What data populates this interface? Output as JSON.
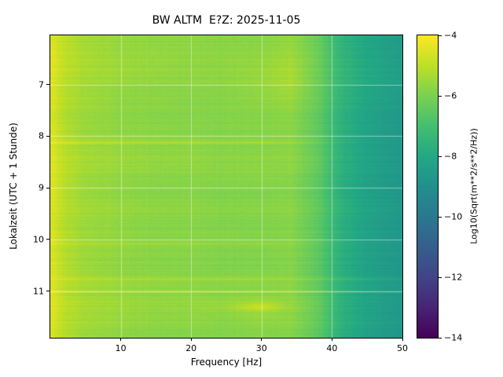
{
  "figure": {
    "title": "BW ALTM  E?Z: 2025-11-05",
    "xlabel": "Frequency [Hz]",
    "ylabel": "Lokalzeit (UTC + 1 Stunde)",
    "colorbar_label": "Log10(Sqrt(m**2/s**2/Hz))"
  },
  "chart_data": {
    "type": "heatmap",
    "title": "BW ALTM  E?Z: 2025-11-05",
    "xlabel": "Frequency [Hz]",
    "ylabel": "Lokalzeit (UTC + 1 Stunde)",
    "x_range": [
      0,
      50
    ],
    "x_ticks": [
      10,
      20,
      30,
      40,
      50
    ],
    "y_range": [
      6.05,
      11.9
    ],
    "y_ticks": [
      7,
      8,
      9,
      10,
      11
    ],
    "grid": true,
    "colorbar": {
      "label": "Log10(Sqrt(m**2/s**2/Hz))",
      "ticks": [
        -4,
        -6,
        -8,
        -10,
        -12,
        -14
      ],
      "vmin": -14,
      "vmax": -4,
      "colormap": "viridis"
    },
    "freq_bins": [
      0.5,
      2,
      5,
      10,
      15,
      20,
      25,
      30,
      34,
      38,
      41,
      45,
      50
    ],
    "time_bins": [
      6.05,
      6.4,
      6.7,
      7.0,
      7.3,
      7.6,
      7.9,
      8.08,
      8.13,
      8.18,
      8.5,
      8.8,
      9.1,
      9.4,
      9.7,
      10.0,
      10.05,
      10.09,
      10.13,
      10.5,
      10.72,
      10.77,
      10.82,
      10.97,
      11.01,
      11.05,
      11.2,
      11.3,
      11.4,
      11.6,
      11.9
    ],
    "values": [
      [
        -4.6,
        -5.0,
        -5.4,
        -5.6,
        -5.7,
        -5.7,
        -5.8,
        -5.8,
        -5.6,
        -6.3,
        -7.4,
        -8.1,
        -8.5
      ],
      [
        -4.5,
        -5.0,
        -5.3,
        -5.6,
        -5.6,
        -5.7,
        -5.7,
        -5.7,
        -5.5,
        -6.2,
        -7.4,
        -8.1,
        -8.5
      ],
      [
        -4.5,
        -5.0,
        -5.3,
        -5.5,
        -5.6,
        -5.7,
        -5.7,
        -5.6,
        -5.3,
        -6.2,
        -7.3,
        -8.0,
        -8.4
      ],
      [
        -4.6,
        -5.1,
        -5.4,
        -5.6,
        -5.7,
        -5.7,
        -5.7,
        -5.6,
        -5.3,
        -6.2,
        -7.3,
        -8.0,
        -8.4
      ],
      [
        -4.6,
        -5.1,
        -5.4,
        -5.7,
        -5.7,
        -5.8,
        -5.8,
        -5.7,
        -5.5,
        -6.3,
        -7.4,
        -8.1,
        -8.5
      ],
      [
        -4.7,
        -5.2,
        -5.5,
        -5.7,
        -5.8,
        -5.8,
        -5.8,
        -5.8,
        -5.7,
        -6.4,
        -7.5,
        -8.2,
        -8.6
      ],
      [
        -4.6,
        -5.1,
        -5.5,
        -5.7,
        -5.7,
        -5.8,
        -5.8,
        -5.8,
        -5.7,
        -6.4,
        -7.5,
        -8.2,
        -8.6
      ],
      [
        -4.6,
        -5.1,
        -5.4,
        -5.6,
        -5.7,
        -5.7,
        -5.8,
        -5.8,
        -5.7,
        -6.4,
        -7.5,
        -8.2,
        -8.6
      ],
      [
        -4.2,
        -4.5,
        -4.8,
        -5.0,
        -5.1,
        -5.1,
        -5.2,
        -5.2,
        -5.3,
        -6.1,
        -7.3,
        -8.1,
        -8.5
      ],
      [
        -4.6,
        -5.1,
        -5.4,
        -5.6,
        -5.7,
        -5.7,
        -5.8,
        -5.8,
        -5.7,
        -6.4,
        -7.5,
        -8.2,
        -8.6
      ],
      [
        -4.5,
        -5.0,
        -5.3,
        -5.5,
        -5.6,
        -5.6,
        -5.7,
        -5.7,
        -5.6,
        -6.3,
        -7.5,
        -8.2,
        -8.6
      ],
      [
        -4.6,
        -5.1,
        -5.5,
        -5.7,
        -5.8,
        -5.8,
        -5.8,
        -5.8,
        -5.8,
        -6.5,
        -7.6,
        -8.3,
        -8.7
      ],
      [
        -4.6,
        -5.1,
        -5.5,
        -5.7,
        -5.8,
        -5.8,
        -5.9,
        -5.9,
        -5.8,
        -6.5,
        -7.6,
        -8.3,
        -8.7
      ],
      [
        -4.6,
        -5.1,
        -5.4,
        -5.6,
        -5.7,
        -5.7,
        -5.8,
        -5.8,
        -5.7,
        -6.4,
        -7.5,
        -8.2,
        -8.6
      ],
      [
        -4.7,
        -5.2,
        -5.5,
        -5.7,
        -5.8,
        -5.8,
        -5.9,
        -5.9,
        -5.8,
        -6.5,
        -7.6,
        -8.3,
        -8.7
      ],
      [
        -4.6,
        -5.1,
        -5.5,
        -5.7,
        -5.8,
        -5.8,
        -5.8,
        -5.9,
        -5.8,
        -6.5,
        -7.6,
        -8.3,
        -8.7
      ],
      [
        -4.6,
        -5.1,
        -5.4,
        -5.6,
        -5.7,
        -5.7,
        -5.8,
        -5.8,
        -5.7,
        -6.4,
        -7.5,
        -8.2,
        -8.6
      ],
      [
        -4.4,
        -4.8,
        -5.1,
        -5.3,
        -5.4,
        -5.4,
        -5.5,
        -5.5,
        -5.5,
        -6.3,
        -7.5,
        -8.2,
        -8.6
      ],
      [
        -4.6,
        -5.1,
        -5.4,
        -5.6,
        -5.7,
        -5.7,
        -5.8,
        -5.8,
        -5.7,
        -6.4,
        -7.5,
        -8.2,
        -8.6
      ],
      [
        -4.6,
        -5.1,
        -5.5,
        -5.7,
        -5.8,
        -5.8,
        -5.9,
        -5.9,
        -5.8,
        -6.5,
        -7.6,
        -8.3,
        -8.7
      ],
      [
        -4.6,
        -5.1,
        -5.4,
        -5.7,
        -5.7,
        -5.8,
        -5.8,
        -5.8,
        -5.8,
        -6.5,
        -7.6,
        -8.3,
        -8.7
      ],
      [
        -4.3,
        -4.6,
        -4.9,
        -5.1,
        -5.2,
        -5.2,
        -5.2,
        -5.3,
        -5.3,
        -5.9,
        -6.9,
        -7.6,
        -8.0
      ],
      [
        -4.6,
        -5.1,
        -5.4,
        -5.6,
        -5.7,
        -5.8,
        -5.8,
        -5.8,
        -5.8,
        -6.5,
        -7.6,
        -8.3,
        -8.7
      ],
      [
        -4.6,
        -5.1,
        -5.4,
        -5.6,
        -5.7,
        -5.7,
        -5.8,
        -5.8,
        -5.7,
        -6.4,
        -7.5,
        -8.2,
        -8.6
      ],
      [
        -4.3,
        -4.7,
        -5.0,
        -5.2,
        -5.2,
        -5.3,
        -5.3,
        -5.3,
        -5.4,
        -6.0,
        -7.0,
        -7.7,
        -8.1
      ],
      [
        -4.6,
        -5.1,
        -5.4,
        -5.6,
        -5.7,
        -5.7,
        -5.8,
        -5.8,
        -5.7,
        -6.4,
        -7.5,
        -8.2,
        -8.6
      ],
      [
        -4.5,
        -5.0,
        -5.3,
        -5.5,
        -5.6,
        -5.6,
        -5.6,
        -5.4,
        -5.6,
        -6.3,
        -7.5,
        -8.2,
        -8.6
      ],
      [
        -4.5,
        -5.0,
        -5.3,
        -5.5,
        -5.6,
        -5.6,
        -5.5,
        -4.7,
        -5.5,
        -6.3,
        -7.5,
        -8.2,
        -8.6
      ],
      [
        -4.5,
        -5.0,
        -5.3,
        -5.5,
        -5.6,
        -5.6,
        -5.6,
        -5.4,
        -5.6,
        -6.3,
        -7.5,
        -8.2,
        -8.6
      ],
      [
        -4.6,
        -5.1,
        -5.4,
        -5.6,
        -5.7,
        -5.7,
        -5.8,
        -5.7,
        -5.7,
        -6.4,
        -7.5,
        -8.2,
        -8.6
      ],
      [
        -4.6,
        -5.1,
        -5.5,
        -5.7,
        -5.8,
        -5.8,
        -5.8,
        -5.8,
        -5.8,
        -6.5,
        -7.6,
        -8.3,
        -8.7
      ]
    ],
    "noise": {
      "row": 0.15,
      "col": 0.06,
      "pixel": 0.1
    },
    "grid_color": "rgba(255,255,255,0.45)"
  }
}
